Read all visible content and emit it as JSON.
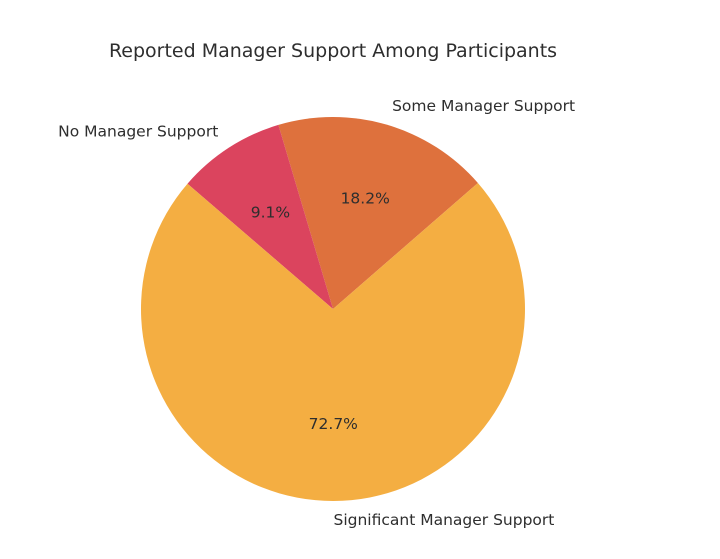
{
  "chart_data": {
    "type": "pie",
    "title": "Reported Manager Support Among Participants",
    "categories": [
      "Some Manager Support",
      "No Manager Support",
      "Significant Manager Support"
    ],
    "values": [
      18.2,
      9.1,
      72.7
    ],
    "slices": [
      {
        "label": "Some Manager Support",
        "value": 18.2,
        "pct_label": "18.2%",
        "color": "#de713d"
      },
      {
        "label": "No Manager Support",
        "value": 9.1,
        "pct_label": "9.1%",
        "color": "#db445e"
      },
      {
        "label": "Significant Manager Support",
        "value": 72.7,
        "pct_label": "72.7%",
        "color": "#f4ae42"
      }
    ],
    "start_angle_deg": 41,
    "direction": "counterclockwise",
    "label_distance": 1.1,
    "pct_distance": 0.6,
    "legend_position": "none",
    "background_color": "#ffffff",
    "text_color": "#2e2e2e"
  }
}
